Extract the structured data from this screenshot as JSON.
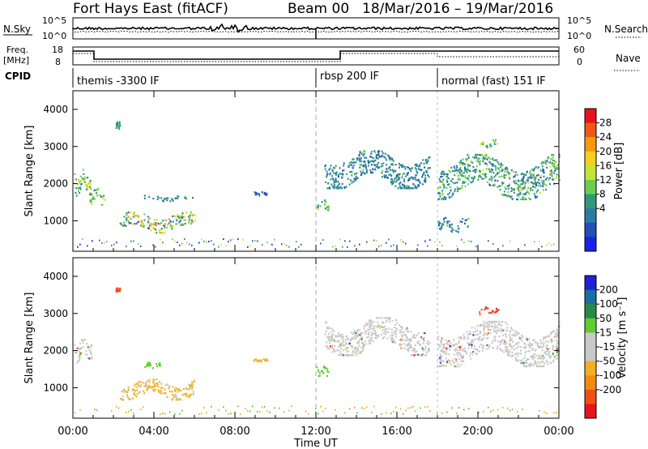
{
  "header": {
    "station": "Fort Hays East (fitACF)",
    "beam": "Beam 00",
    "dates": "18/Mar/2016 – 19/Mar/2016"
  },
  "noise_panel": {
    "left_label": "N.Sky",
    "left_ticks": [
      "10^5",
      "10^0"
    ],
    "right_ticks": [
      "10^5",
      "10^0"
    ],
    "right_label": "N.Search"
  },
  "freq_panel": {
    "left_label_1": "Freq.",
    "left_label_2": "[MHz]",
    "left_ticks": [
      "18",
      "8"
    ],
    "right_ticks": [
      "60",
      "0"
    ],
    "right_label": "Nave"
  },
  "cpid": {
    "label": "CPID",
    "modes": [
      {
        "name": "themis -3300 IF",
        "start_hour": 0
      },
      {
        "name": "rbsp 200 IF",
        "start_hour": 12
      },
      {
        "name": "normal (fast) 151 IF",
        "start_hour": 18
      }
    ]
  },
  "time_axis": {
    "label": "Time UT",
    "ticks": [
      "00:00",
      "04:00",
      "08:00",
      "12:00",
      "16:00",
      "20:00",
      "00:00"
    ]
  },
  "chart_data": [
    {
      "type": "heatmap",
      "title": "",
      "parameter": "power",
      "xlabel": "Time UT",
      "ylabel": "Slant Range [km]",
      "xlim_hours": [
        0,
        24
      ],
      "ylim_km": [
        180,
        4500
      ],
      "yticks": [
        1000,
        2000,
        3000,
        4000
      ],
      "colorbar": {
        "label": "Power [dB]",
        "ticks": [
          "28",
          "24",
          "20",
          "16",
          "12",
          "8",
          "4"
        ],
        "colors": [
          "#e8141c",
          "#ee5a16",
          "#f59a10",
          "#f4d020",
          "#c4e43a",
          "#6dcd4e",
          "#2f9a7a",
          "#2e7aa6",
          "#2050b8",
          "#1a22e8"
        ]
      },
      "regions": [
        {
          "t0": 0.05,
          "t1": 0.9,
          "r0": 1700,
          "r1": 2400,
          "level": "8-20"
        },
        {
          "t0": 0.8,
          "t1": 1.6,
          "r0": 1450,
          "r1": 1900,
          "level": "8-16"
        },
        {
          "t0": 2.1,
          "t1": 2.3,
          "r0": 3500,
          "r1": 3700,
          "level": "8-12"
        },
        {
          "t0": 2.3,
          "t1": 6.0,
          "r0": 700,
          "r1": 1250,
          "level": "4-24"
        },
        {
          "t0": 3.5,
          "t1": 6.0,
          "r0": 1550,
          "r1": 1700,
          "level": "4-12"
        },
        {
          "t0": 8.9,
          "t1": 9.6,
          "r0": 1700,
          "r1": 1800,
          "level": "4-8"
        },
        {
          "t0": 12.0,
          "t1": 12.6,
          "r0": 1300,
          "r1": 1600,
          "level": "8-16"
        },
        {
          "t0": 12.4,
          "t1": 17.6,
          "r0": 1900,
          "r1": 2900,
          "level": "4-12"
        },
        {
          "t0": 18.0,
          "t1": 24.0,
          "r0": 1600,
          "r1": 2800,
          "level": "4-16"
        },
        {
          "t0": 18.0,
          "t1": 19.5,
          "r0": 700,
          "r1": 1100,
          "level": "4-12"
        },
        {
          "t0": 20.0,
          "t1": 21.0,
          "r0": 3000,
          "r1": 3200,
          "level": "8-16"
        }
      ]
    },
    {
      "type": "heatmap",
      "title": "",
      "parameter": "velocity",
      "xlabel": "Time UT",
      "ylabel": "Slant Range [km]",
      "xlim_hours": [
        0,
        24
      ],
      "ylim_km": [
        180,
        4500
      ],
      "yticks": [
        1000,
        2000,
        3000,
        4000
      ],
      "colorbar": {
        "label": "Velocity [m s⁻¹]",
        "ticks": [
          "200",
          "100",
          "50",
          "15",
          "-15",
          "-50",
          "-100",
          "-200"
        ],
        "colors": [
          "#2020d8",
          "#1a6ea0",
          "#2c8a48",
          "#60cc30",
          "#c8c8c8",
          "#c8c8c8",
          "#f2b020",
          "#f28a14",
          "#ee5016",
          "#e8141c"
        ]
      },
      "regions": [
        {
          "t0": 0.05,
          "t1": 0.9,
          "r0": 1700,
          "r1": 2400,
          "level": "-15..15"
        },
        {
          "t0": 2.3,
          "t1": 6.0,
          "r0": 700,
          "r1": 1250,
          "level": "-50..-15"
        },
        {
          "t0": 2.1,
          "t1": 2.3,
          "r0": 3600,
          "r1": 3700,
          "level": "-100"
        },
        {
          "t0": 3.5,
          "t1": 4.3,
          "r0": 1550,
          "r1": 1700,
          "level": "15..50"
        },
        {
          "t0": 8.9,
          "t1": 9.6,
          "r0": 1700,
          "r1": 1800,
          "level": "-50"
        },
        {
          "t0": 12.0,
          "t1": 12.6,
          "r0": 1300,
          "r1": 1600,
          "level": "15..50"
        },
        {
          "t0": 12.4,
          "t1": 17.6,
          "r0": 1900,
          "r1": 2900,
          "level": "-15..15"
        },
        {
          "t0": 18.0,
          "t1": 24.0,
          "r0": 1600,
          "r1": 2800,
          "level": "-15..15"
        },
        {
          "t0": 20.0,
          "t1": 21.0,
          "r0": 3000,
          "r1": 3200,
          "level": "-100..-200"
        }
      ]
    }
  ]
}
